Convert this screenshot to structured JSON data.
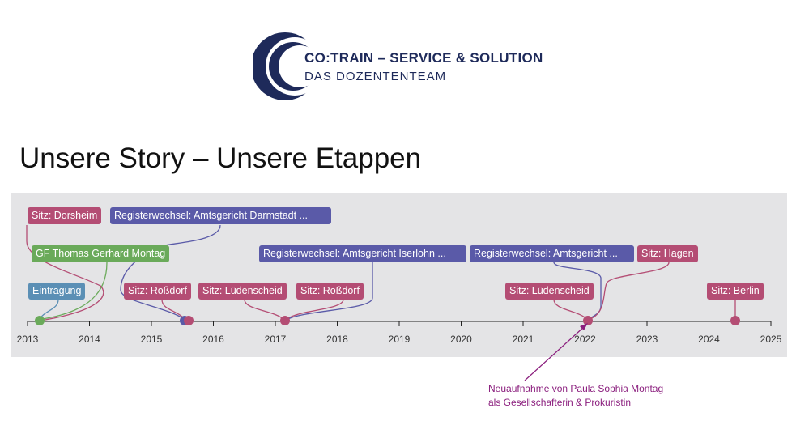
{
  "header": {
    "logo_line1": "CO:TRAIN – SERVICE & SOLUTION",
    "logo_line2": "DAS DOZENTENTEAM",
    "logo_color": "#1e2a5a"
  },
  "page_title": "Unsere Story – Unsere Etappen",
  "timeline": {
    "ticks": [
      "2013",
      "2014",
      "2015",
      "2016",
      "2017",
      "2018",
      "2019",
      "2020",
      "2021",
      "2022",
      "2023",
      "2024",
      "2025"
    ],
    "colors": {
      "eintragung": "#5b8fb5",
      "gf": "#6aaa5a",
      "sitz": "#b44d74",
      "register": "#5a5aa8"
    },
    "events": [
      {
        "label": "Sitz: Dorsheim",
        "color": "#b44d74"
      },
      {
        "label": "Registerwechsel: Amtsgericht Darmstadt ...",
        "color": "#5a5aa8"
      },
      {
        "label": "GF Thomas Gerhard Montag",
        "color": "#6aaa5a"
      },
      {
        "label": "Registerwechsel: Amtsgericht Iserlohn ...",
        "color": "#5a5aa8"
      },
      {
        "label": "Registerwechsel: Amtsgericht ...",
        "color": "#5a5aa8"
      },
      {
        "label": "Sitz: Hagen",
        "color": "#b44d74"
      },
      {
        "label": "Eintragung",
        "color": "#5b8fb5"
      },
      {
        "label": "Sitz: Roßdorf",
        "color": "#b44d74"
      },
      {
        "label": "Sitz: Lüdenscheid",
        "color": "#b44d74"
      },
      {
        "label": "Sitz: Roßdorf",
        "color": "#b44d74"
      },
      {
        "label": "Sitz: Lüdenscheid",
        "color": "#b44d74"
      },
      {
        "label": "Sitz: Berlin",
        "color": "#b44d74"
      }
    ]
  },
  "annotation": {
    "line1": "Neuaufnahme von Paula Sophia Montag",
    "line2": "als Gesellschafterin & Prokuristin",
    "color": "#8b1f7e"
  }
}
